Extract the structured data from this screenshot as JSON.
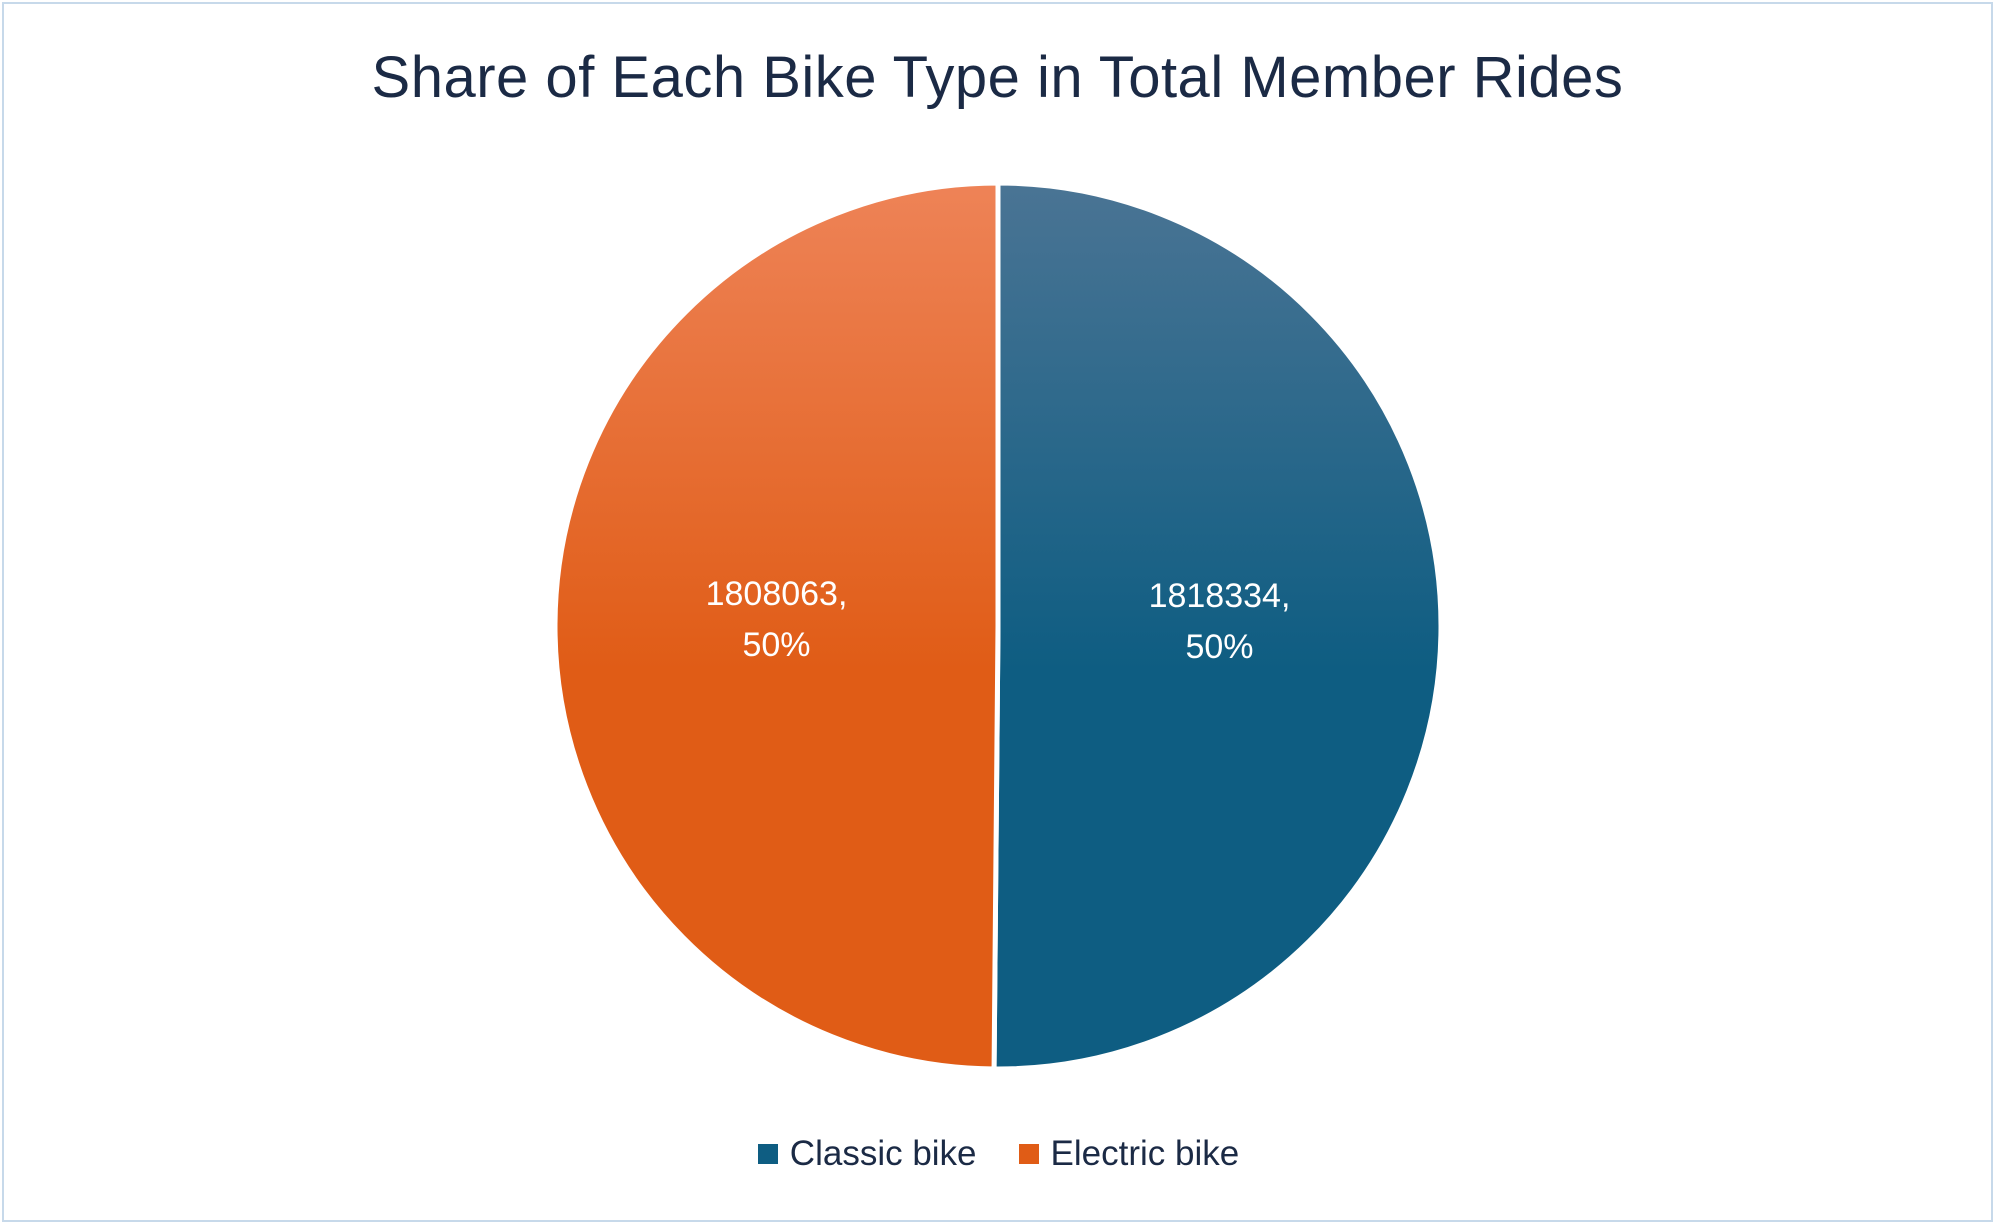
{
  "chart_data": {
    "type": "pie",
    "title": "Share of Each Bike Type in Total Member Rides",
    "series": [
      {
        "name": "Classic bike",
        "value": 1818334,
        "percent_label": "50%",
        "color": "#0e5d82",
        "color_light": "#4a7494",
        "data_label": "1818334,"
      },
      {
        "name": "Electric bike",
        "value": 1808063,
        "percent_label": "50%",
        "color": "#e05c16",
        "color_light": "#ee8357",
        "data_label": "1808063,"
      }
    ],
    "legend_position": "bottom",
    "start_angle": "top",
    "direction": "clockwise"
  }
}
